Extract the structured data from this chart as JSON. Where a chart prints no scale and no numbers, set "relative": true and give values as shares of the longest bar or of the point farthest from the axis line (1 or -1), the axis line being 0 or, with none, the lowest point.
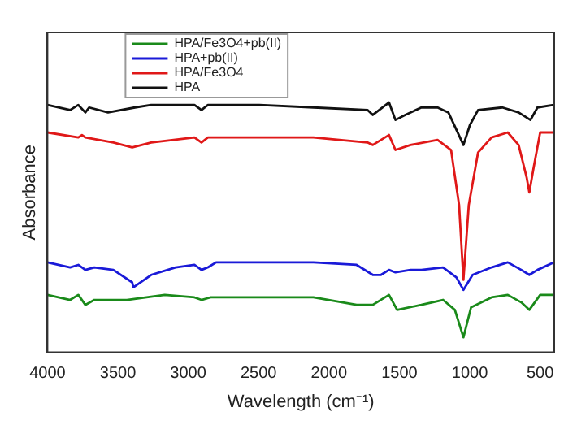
{
  "chart_data": {
    "type": "line",
    "relative": true,
    "xlabel": "Wavelength (cm⁻¹)",
    "ylabel": "Absorbance",
    "xlim": [
      4000,
      400
    ],
    "xticks": [
      4000,
      3500,
      3000,
      2500,
      2000,
      1500,
      1000,
      500
    ],
    "tick_labels": "x",
    "legend": "top left",
    "grid": false,
    "marker": "none",
    "line_style": "solid",
    "series": [
      {
        "name": "HPA/Fe3O4+pb(II)",
        "color": "#1a8a1a",
        "x": [
          4000,
          3839,
          3781,
          3731,
          3667,
          3436,
          3167,
          2956,
          2906,
          2840,
          2111,
          1804,
          1689,
          1574,
          1516,
          1344,
          1190,
          1106,
          1045,
          991,
          845,
          730,
          634,
          577,
          500,
          404
        ],
        "values": [
          0.23,
          0.21,
          0.23,
          0.19,
          0.21,
          0.21,
          0.23,
          0.22,
          0.21,
          0.22,
          0.22,
          0.19,
          0.19,
          0.23,
          0.17,
          0.19,
          0.21,
          0.17,
          0.06,
          0.18,
          0.22,
          0.23,
          0.2,
          0.17,
          0.23,
          0.23
        ]
      },
      {
        "name": "HPA+pb(II)",
        "color": "#1a1ad8",
        "x": [
          4000,
          3839,
          3781,
          3731,
          3667,
          3532,
          3398,
          3390,
          3263,
          3090,
          2956,
          2906,
          2860,
          2802,
          2111,
          1804,
          1689,
          1631,
          1574,
          1528,
          1421,
          1344,
          1190,
          1095,
          1045,
          980,
          845,
          730,
          634,
          577,
          519,
          404
        ],
        "values": [
          0.36,
          0.34,
          0.35,
          0.33,
          0.34,
          0.33,
          0.28,
          0.26,
          0.31,
          0.34,
          0.35,
          0.33,
          0.34,
          0.36,
          0.36,
          0.35,
          0.31,
          0.31,
          0.33,
          0.32,
          0.33,
          0.33,
          0.34,
          0.3,
          0.25,
          0.31,
          0.34,
          0.36,
          0.33,
          0.31,
          0.33,
          0.36
        ]
      },
      {
        "name": "HPA/Fe3O4",
        "color": "#e01818",
        "x": [
          4000,
          3781,
          3755,
          3731,
          3532,
          3398,
          3263,
          2956,
          2906,
          2860,
          2495,
          2111,
          1727,
          1689,
          1574,
          1528,
          1421,
          1229,
          1133,
          1076,
          1045,
          1007,
          941,
          845,
          730,
          653,
          596,
          577,
          546,
          500,
          404
        ],
        "values": [
          0.88,
          0.86,
          0.87,
          0.86,
          0.84,
          0.82,
          0.84,
          0.86,
          0.84,
          0.86,
          0.86,
          0.86,
          0.84,
          0.83,
          0.87,
          0.81,
          0.83,
          0.85,
          0.81,
          0.59,
          0.29,
          0.59,
          0.8,
          0.86,
          0.88,
          0.83,
          0.7,
          0.64,
          0.74,
          0.88,
          0.88
        ]
      },
      {
        "name": "HPA",
        "color": "#111111",
        "x": [
          4000,
          3839,
          3781,
          3731,
          3704,
          3570,
          3378,
          3263,
          2956,
          2906,
          2860,
          2495,
          2111,
          1727,
          1689,
          1574,
          1528,
          1459,
          1344,
          1229,
          1152,
          1045,
          999,
          941,
          768,
          653,
          569,
          519,
          404
        ],
        "values": [
          0.99,
          0.97,
          0.99,
          0.96,
          0.98,
          0.96,
          0.98,
          0.99,
          0.99,
          0.97,
          0.99,
          0.99,
          0.98,
          0.97,
          0.95,
          1.0,
          0.93,
          0.95,
          0.98,
          0.98,
          0.96,
          0.83,
          0.91,
          0.97,
          0.98,
          0.96,
          0.93,
          0.98,
          0.99
        ]
      }
    ]
  }
}
